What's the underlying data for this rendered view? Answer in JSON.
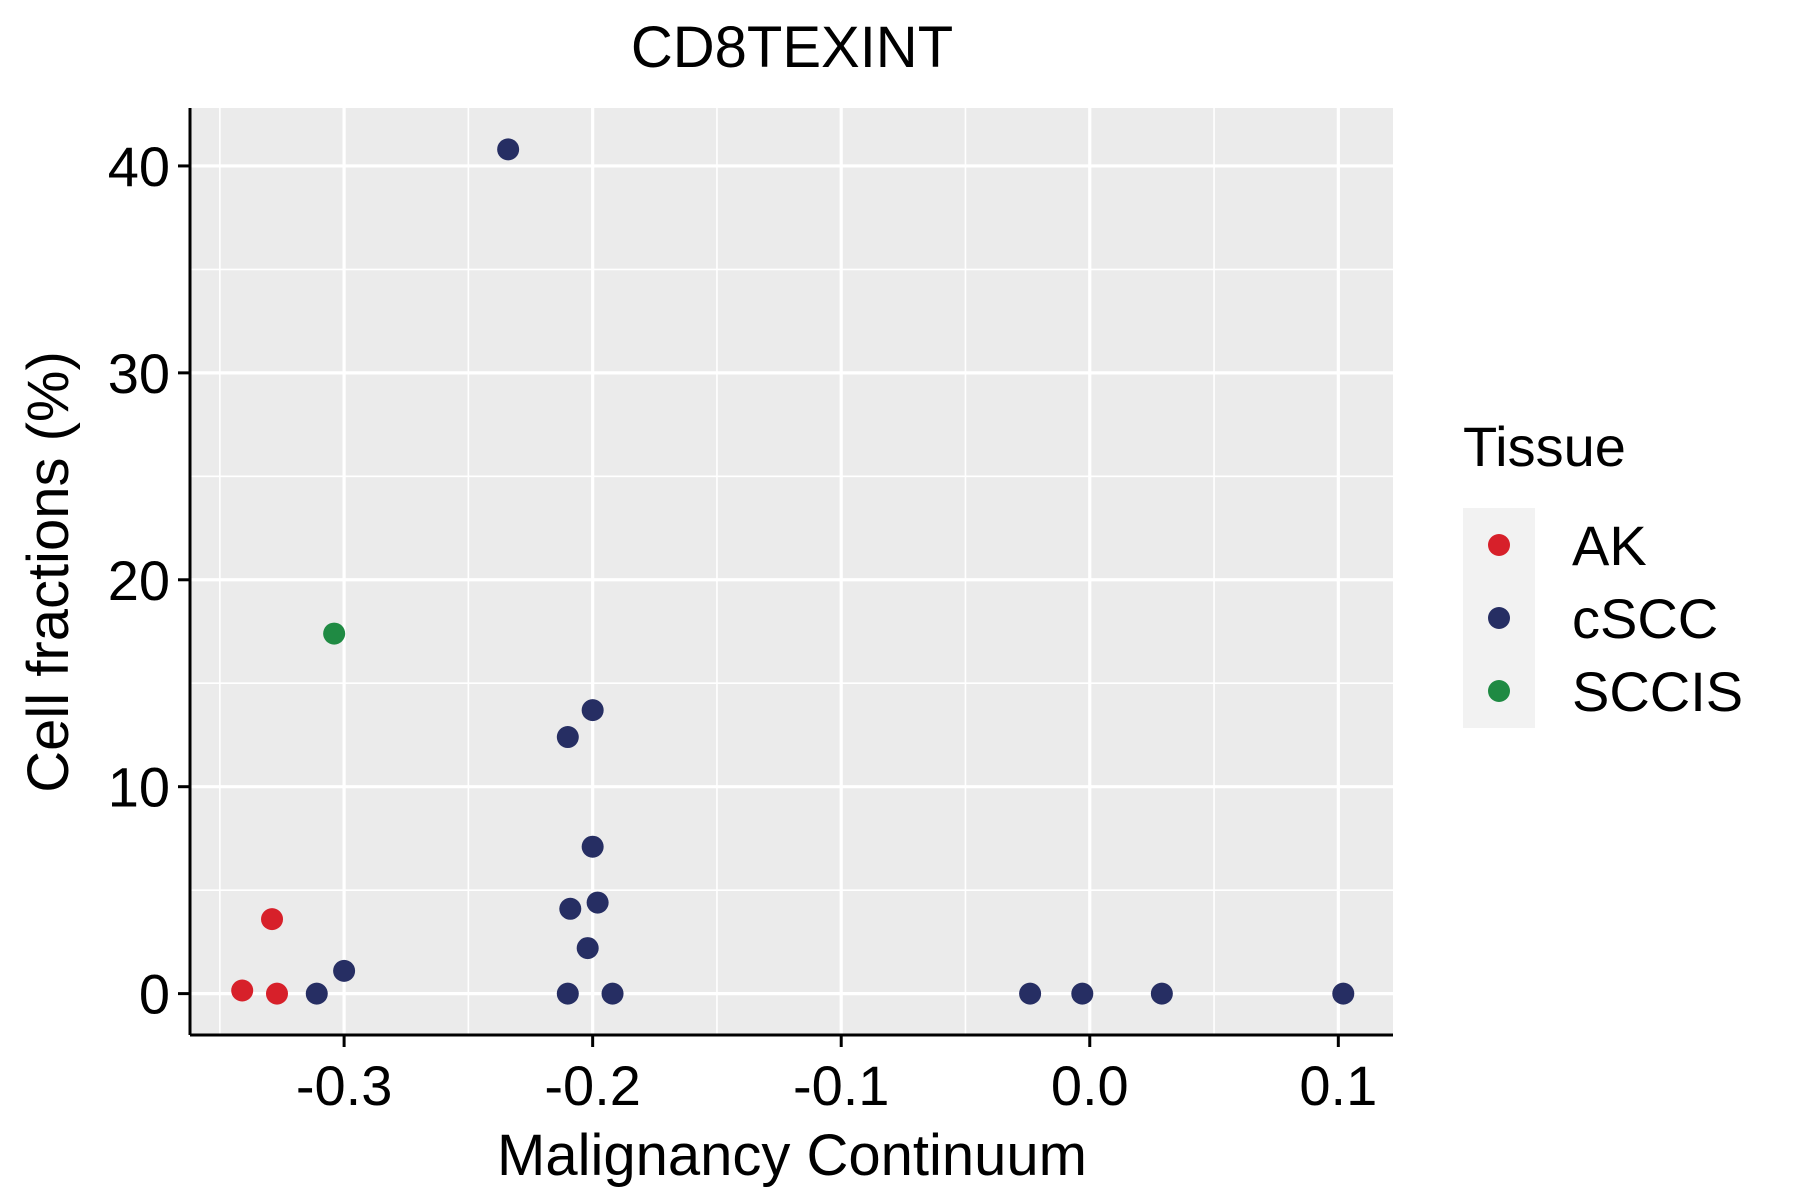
{
  "chart_data": {
    "type": "scatter",
    "title": "CD8TEXINT",
    "xlabel": "Malignancy Continuum",
    "ylabel": "Cell fractions (%)",
    "xlim": [
      -0.362,
      0.122
    ],
    "ylim": [
      -2.0,
      42.8
    ],
    "x_ticks": [
      -0.3,
      -0.2,
      -0.1,
      0.0,
      0.1
    ],
    "x_tick_labels": [
      "-0.3",
      "-0.2",
      "-0.1",
      "0.0",
      "0.1"
    ],
    "y_ticks": [
      0,
      10,
      20,
      30,
      40
    ],
    "y_tick_labels": [
      "0",
      "10",
      "20",
      "30",
      "40"
    ],
    "grid": true,
    "legend_title": "Tissue",
    "legend_position": "right",
    "series": [
      {
        "name": "AK",
        "color": "#d7202a",
        "points": [
          {
            "x": -0.341,
            "y": 0.15
          },
          {
            "x": -0.327,
            "y": 0.0
          },
          {
            "x": -0.329,
            "y": 3.6
          }
        ]
      },
      {
        "name": "cSCC",
        "color": "#262e63",
        "points": [
          {
            "x": -0.234,
            "y": 40.8
          },
          {
            "x": -0.2,
            "y": 13.7
          },
          {
            "x": -0.21,
            "y": 12.4
          },
          {
            "x": -0.2,
            "y": 7.1
          },
          {
            "x": -0.198,
            "y": 4.4
          },
          {
            "x": -0.209,
            "y": 4.1
          },
          {
            "x": -0.202,
            "y": 2.2
          },
          {
            "x": -0.21,
            "y": 0.0
          },
          {
            "x": -0.192,
            "y": 0.0
          },
          {
            "x": -0.3,
            "y": 1.1
          },
          {
            "x": -0.311,
            "y": 0.0
          },
          {
            "x": -0.024,
            "y": 0.0
          },
          {
            "x": -0.003,
            "y": 0.0
          },
          {
            "x": 0.029,
            "y": 0.0
          },
          {
            "x": 0.102,
            "y": 0.0
          }
        ]
      },
      {
        "name": "SCCIS",
        "color": "#1f8a43",
        "points": [
          {
            "x": -0.304,
            "y": 17.4
          }
        ]
      }
    ]
  }
}
